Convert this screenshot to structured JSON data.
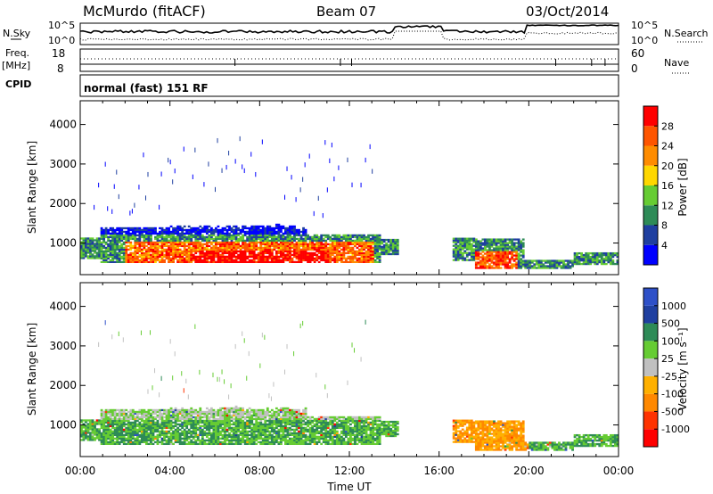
{
  "header": {
    "station": "McMurdo (fitACF)",
    "beam": "Beam 07",
    "date": "03/Oct/2014"
  },
  "noise_panel": {
    "left_label": "N.Sky",
    "right_label": "N.Search",
    "left_ticks": [
      "10^5",
      "10^0"
    ],
    "right_ticks": [
      "10^5",
      "10^0"
    ]
  },
  "freq_panel": {
    "left_label_1": "Freq.",
    "left_label_2": "[MHz]",
    "left_ticks": [
      "18",
      "8"
    ],
    "right_label": "Nave",
    "right_ticks": [
      "60",
      "0"
    ]
  },
  "cpid": {
    "label": "CPID",
    "value": "normal (fast) 151 RF"
  },
  "colors": {
    "power": [
      "#0000ff",
      "#1f3fa0",
      "#2e8b57",
      "#66cc33",
      "#ffd700",
      "#ff8c00",
      "#ff5500",
      "#ff0000"
    ],
    "velocity": [
      "#ff0000",
      "#ff3300",
      "#ff8800",
      "#ffb000",
      "#c0c0c0",
      "#66cc33",
      "#2e8b57",
      "#1f3fa0",
      "#2e50c8"
    ]
  },
  "chart_data": [
    {
      "type": "heatmap",
      "name": "Power",
      "ylabel": "Slant Range [km]",
      "y_ticks": [
        "4000",
        "3000",
        "2000",
        "1000"
      ],
      "y_tick_values": [
        4000,
        3000,
        2000,
        1000
      ],
      "ylim": [
        200,
        4600
      ],
      "x_tick_labels": [
        "00:00",
        "04:00",
        "08:00",
        "12:00",
        "16:00",
        "20:00",
        "00:00"
      ],
      "x_tick_hours": [
        0,
        4,
        8,
        12,
        16,
        20,
        24
      ],
      "colorbar_label": "Power [dB]",
      "colorbar_ticks": [
        "28",
        "24",
        "20",
        "16",
        "12",
        "8",
        "4"
      ],
      "colorbar_range": [
        0,
        32
      ]
    },
    {
      "type": "heatmap",
      "name": "Velocity",
      "ylabel": "Slant Range [km]",
      "y_ticks": [
        "4000",
        "3000",
        "2000",
        "1000"
      ],
      "y_tick_values": [
        4000,
        3000,
        2000,
        1000
      ],
      "ylim": [
        200,
        4600
      ],
      "x_tick_labels": [
        "00:00",
        "04:00",
        "08:00",
        "12:00",
        "16:00",
        "20:00",
        "00:00"
      ],
      "x_tick_hours": [
        0,
        4,
        8,
        12,
        16,
        20,
        24
      ],
      "xlabel": "Time UT",
      "colorbar_label": "Velocity [m s⁻¹]",
      "colorbar_ticks": [
        "1000",
        "500",
        "100",
        "25",
        "-25",
        "-100",
        "-500",
        "-1000"
      ]
    }
  ]
}
